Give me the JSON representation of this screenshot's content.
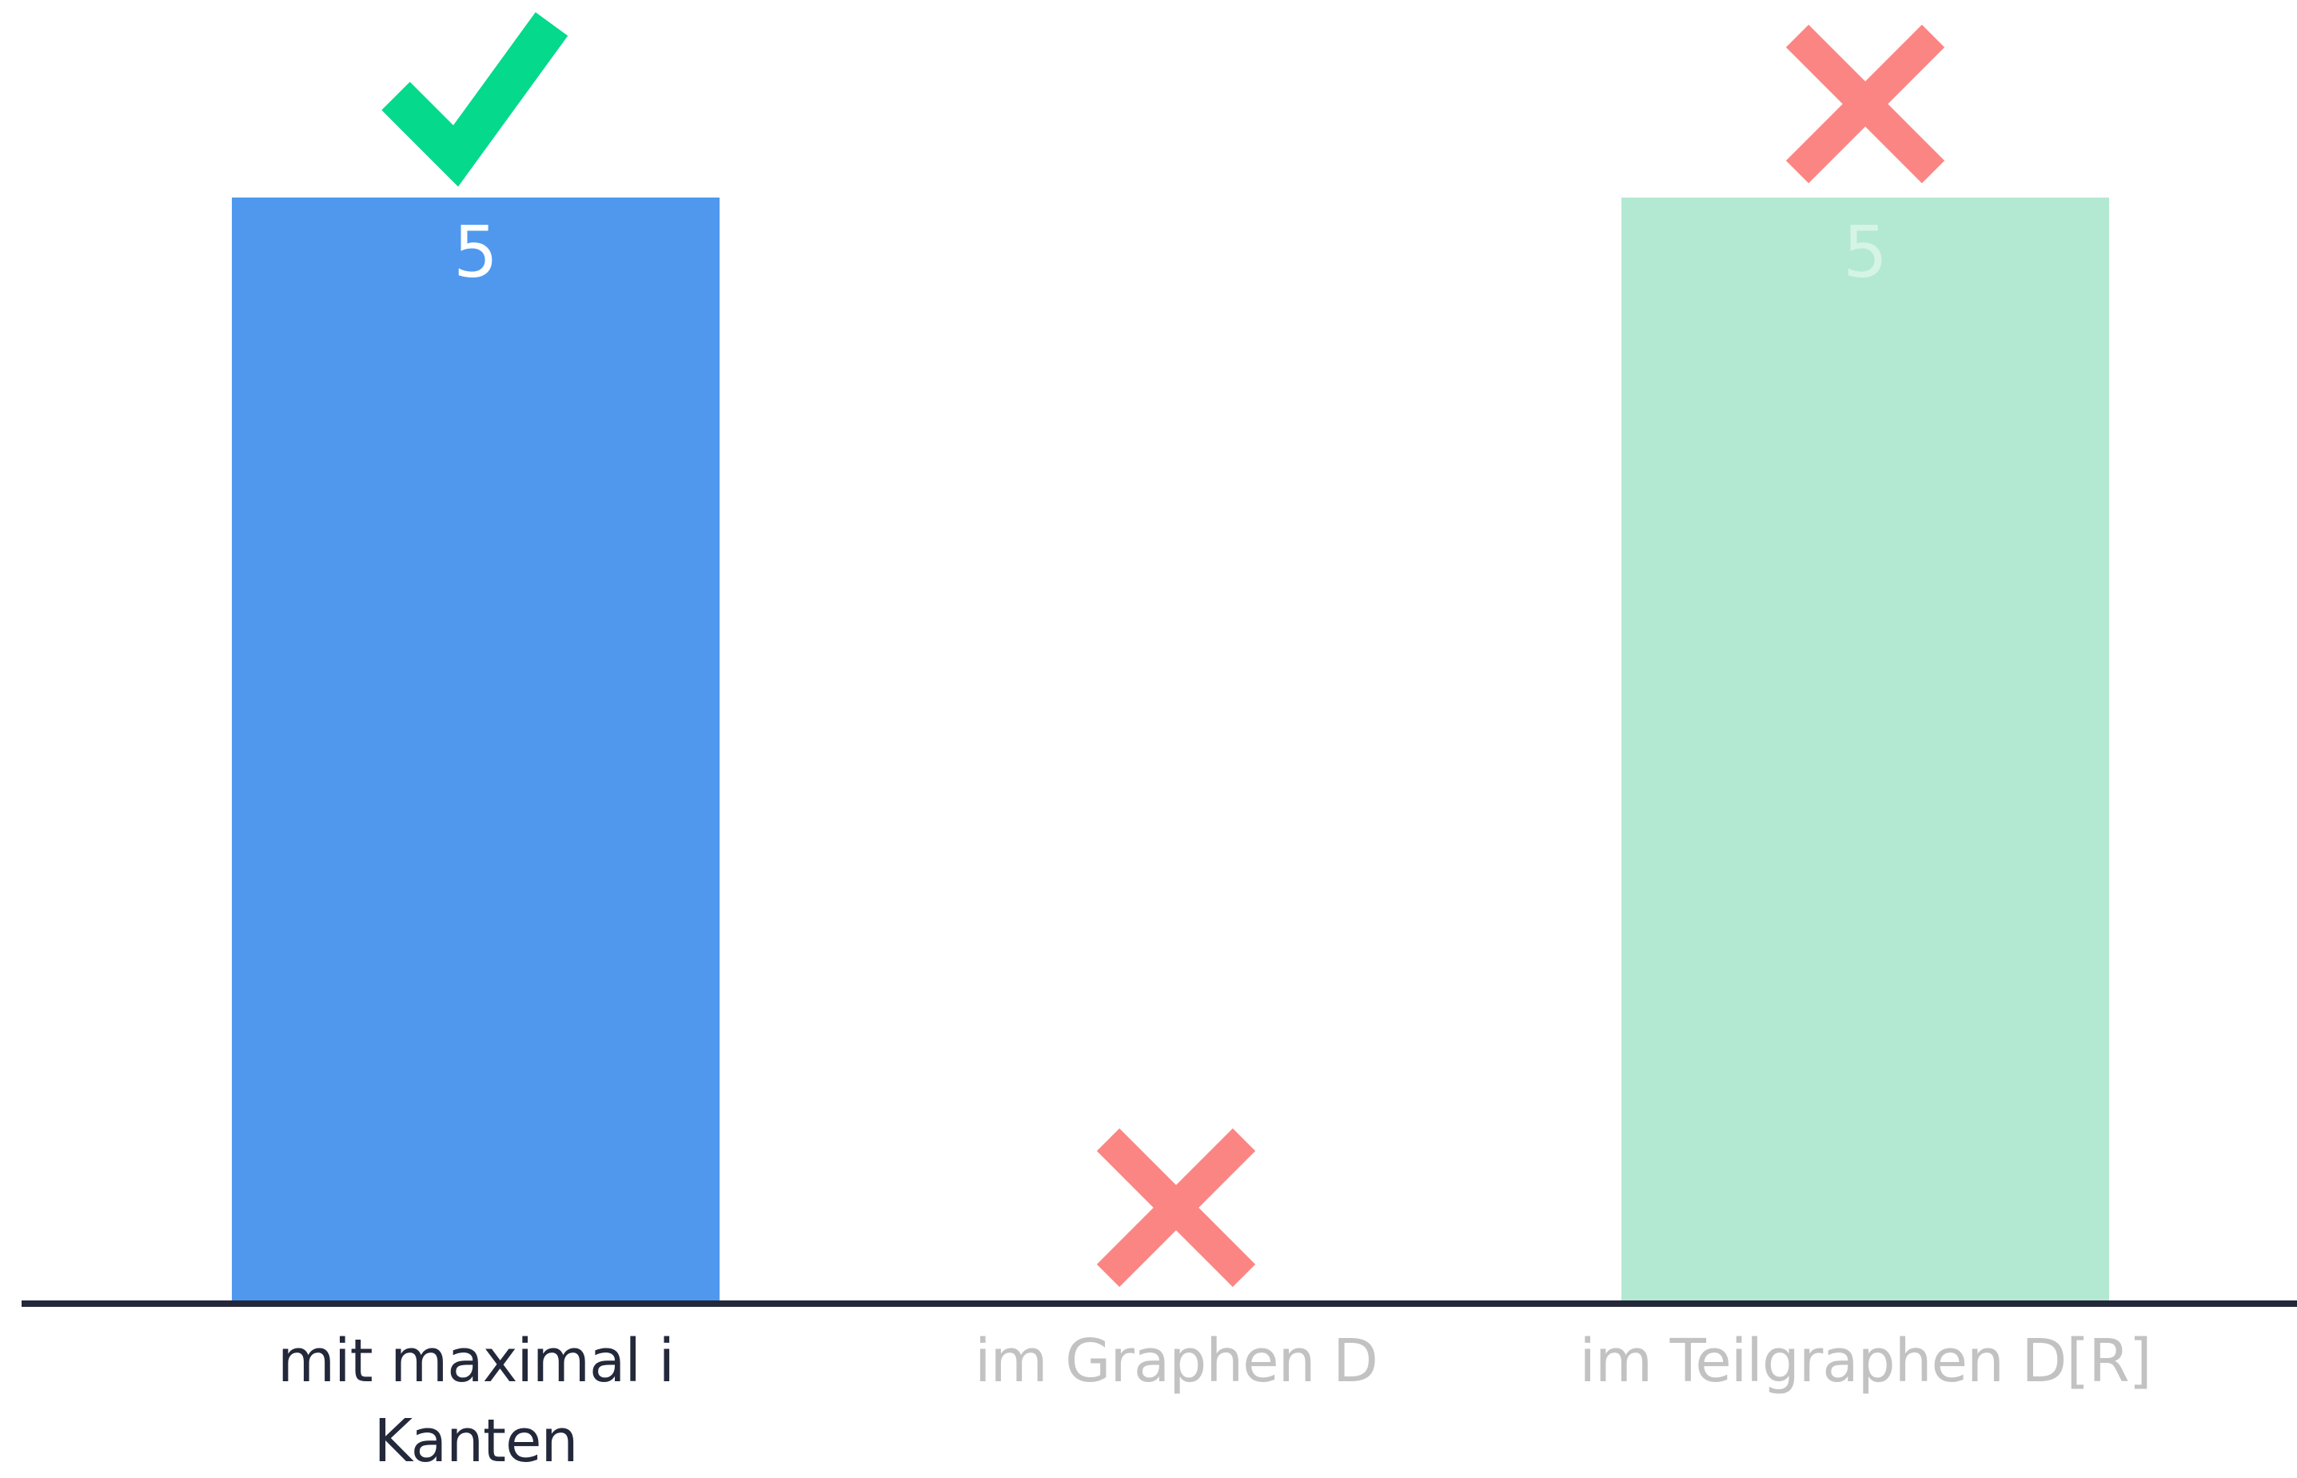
{
  "chart_data": {
    "type": "bar",
    "categories": [
      "mit maximal i Kanten",
      "im Graphen D",
      "im Teilgraphen D[R]"
    ],
    "values": [
      5,
      0,
      5
    ],
    "colors": [
      "#4f98ee",
      "#4f98ee",
      "#b3e9d2"
    ],
    "label_colors": [
      "#23283a",
      "#c2c2c2",
      "#c2c2c2"
    ],
    "value_label_colors": [
      "#ffffff",
      "#ffffff",
      "#d6f4e6"
    ],
    "correct": [
      true,
      false,
      false
    ],
    "ylim": [
      0,
      5
    ]
  }
}
